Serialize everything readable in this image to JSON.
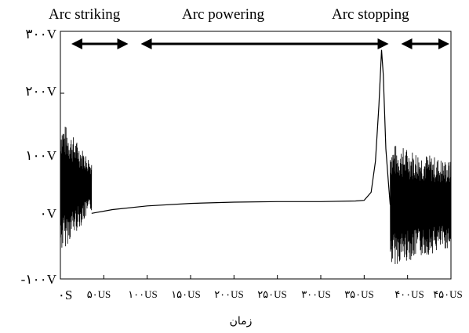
{
  "chart_data": {
    "type": "line",
    "title": "",
    "xlabel": "زمان",
    "ylabel": "",
    "xlim": [
      0,
      450
    ],
    "ylim": [
      -100,
      300
    ],
    "x_unit": "US",
    "y_unit": "V",
    "x_ticks": [
      {
        "value": 0,
        "label": "۰S"
      },
      {
        "value": 50,
        "label": "۵۰US"
      },
      {
        "value": 100,
        "label": "۱۰۰US"
      },
      {
        "value": 150,
        "label": "۱۵۰US"
      },
      {
        "value": 200,
        "label": "۲۰۰US"
      },
      {
        "value": 250,
        "label": "۲۵۰US"
      },
      {
        "value": 300,
        "label": "۳۰۰US"
      },
      {
        "value": 350,
        "label": "۳۵۰US"
      },
      {
        "value": 400,
        "label": "۴۰۰US"
      },
      {
        "value": 450,
        "label": "۴۵۰US"
      }
    ],
    "y_ticks": [
      {
        "value": 300,
        "label": "۳۰۰V"
      },
      {
        "value": 200,
        "label": "۲۰۰V"
      },
      {
        "value": 100,
        "label": "۱۰۰V"
      },
      {
        "value": 0,
        "label": "۰V"
      },
      {
        "value": -100,
        "label": "-۱۰۰V"
      }
    ],
    "phases": [
      {
        "label": "Arc striking",
        "x_start": 0,
        "x_end": 80
      },
      {
        "label": "Arc powering",
        "x_start": 80,
        "x_end": 380
      },
      {
        "label": "Arc stopping",
        "x_start": 380,
        "x_end": 450
      }
    ],
    "series": [
      {
        "color": "#000000",
        "segments": [
          {
            "kind": "oscillation",
            "x_start": 0,
            "x_end": 36,
            "center": 50,
            "amp_start": 110,
            "amp_end": 40
          },
          {
            "kind": "line",
            "points": [
              [
                36,
                6
              ],
              [
                60,
                12
              ],
              [
                100,
                18
              ],
              [
                150,
                22
              ],
              [
                200,
                24
              ],
              [
                250,
                25
              ],
              [
                300,
                25
              ],
              [
                340,
                26
              ],
              [
                350,
                27
              ],
              [
                358,
                40
              ],
              [
                363,
                90
              ],
              [
                367,
                180
              ],
              [
                370,
                270
              ],
              [
                372,
                230
              ],
              [
                375,
                110
              ],
              [
                378,
                55
              ],
              [
                380,
                20
              ]
            ]
          },
          {
            "kind": "oscillation",
            "x_start": 380,
            "x_end": 450,
            "center": 20,
            "amp_start": 100,
            "amp_end": 70
          }
        ]
      }
    ],
    "grid": false,
    "legend": "none"
  }
}
